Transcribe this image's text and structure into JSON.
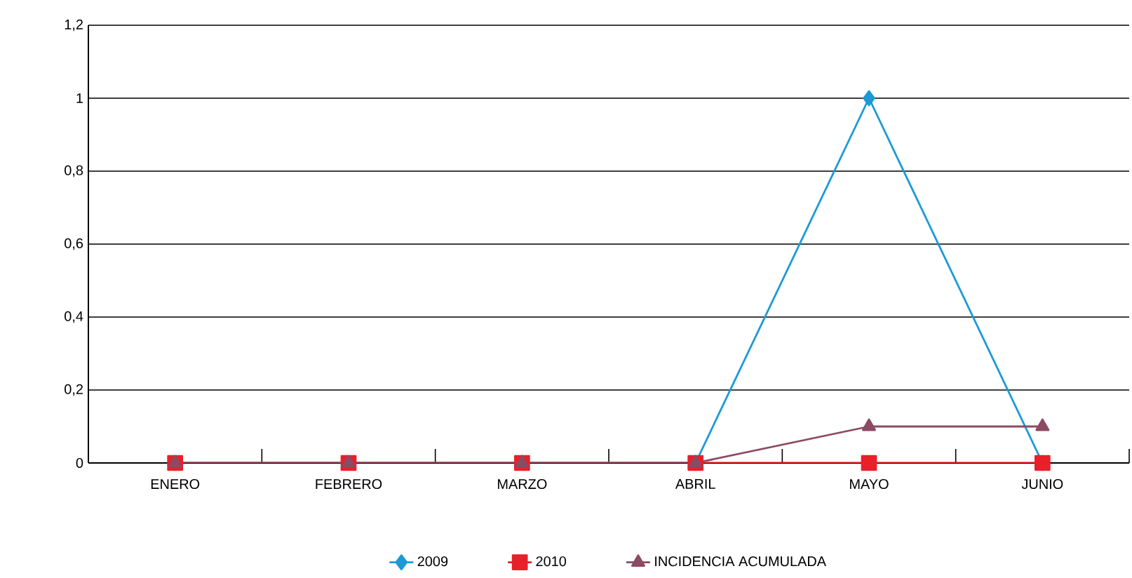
{
  "chart_data": {
    "type": "line",
    "categories": [
      "ENERO",
      "FEBRERO",
      "MARZO",
      "ABRIL",
      "MAYO",
      "JUNIO"
    ],
    "series": [
      {
        "name": "2009",
        "color": "#1b9ad6",
        "marker": "diamond",
        "values": [
          null,
          null,
          null,
          0,
          1,
          0
        ]
      },
      {
        "name": "2010",
        "color": "#e8202a",
        "marker": "square",
        "values": [
          0,
          0,
          0,
          0,
          0,
          0
        ]
      },
      {
        "name": "INCIDENCIA ACUMULADA",
        "color": "#8c4a63",
        "marker": "triangle",
        "values": [
          0,
          0,
          0,
          0,
          0.1,
          0.1
        ]
      }
    ],
    "ylim": [
      0,
      1.2
    ],
    "yticks": [
      0,
      {
        "value": 0.2,
        "label": "0,2"
      },
      {
        "value": 0.4,
        "label": "0,4"
      },
      {
        "value": 0.6,
        "label": "0,6"
      },
      {
        "value": 0.8,
        "label": "0,8"
      },
      1,
      {
        "value": 1.2,
        "label": "1,2"
      }
    ],
    "grid": "y",
    "legend": "bottom",
    "line_style": "solid"
  }
}
